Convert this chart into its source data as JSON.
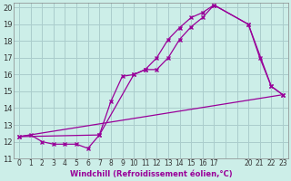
{
  "xlabel": "Windchill (Refroidissement éolien,°C)",
  "bg_color": "#cceee8",
  "grid_color": "#aacccc",
  "line_color": "#990099",
  "xlim": [
    -0.5,
    23.5
  ],
  "ylim": [
    11,
    20.3
  ],
  "xtick_labels": [
    "0",
    "1",
    "2",
    "3",
    "4",
    "5",
    "6",
    "7",
    "8",
    "9",
    "10",
    "11",
    "12",
    "13",
    "14",
    "15",
    "16",
    "17",
    "",
    "",
    "20",
    "21",
    "22",
    "23"
  ],
  "xtick_positions": [
    0,
    1,
    2,
    3,
    4,
    5,
    6,
    7,
    8,
    9,
    10,
    11,
    12,
    13,
    14,
    15,
    16,
    17,
    18,
    19,
    20,
    21,
    22,
    23
  ],
  "ytick_positions": [
    11,
    12,
    13,
    14,
    15,
    16,
    17,
    18,
    19,
    20
  ],
  "series1_x": [
    0,
    1,
    2,
    3,
    4,
    5,
    6,
    7,
    8,
    9,
    10,
    11,
    12,
    13,
    14,
    15,
    16,
    17,
    20,
    21,
    22,
    23
  ],
  "series1_y": [
    12.3,
    12.4,
    12.0,
    11.85,
    11.85,
    11.85,
    11.6,
    12.4,
    14.4,
    15.9,
    16.0,
    16.3,
    17.0,
    18.1,
    18.8,
    19.4,
    19.7,
    20.15,
    19.0,
    17.0,
    15.3,
    14.8
  ],
  "series2_x": [
    0,
    7,
    10,
    11,
    12,
    13,
    14,
    15,
    16,
    17,
    20,
    22,
    23
  ],
  "series2_y": [
    12.3,
    12.4,
    16.0,
    16.3,
    16.3,
    17.0,
    18.1,
    18.85,
    19.4,
    20.15,
    19.0,
    15.3,
    14.8
  ],
  "series3_x": [
    0,
    23
  ],
  "series3_y": [
    12.3,
    14.8
  ]
}
